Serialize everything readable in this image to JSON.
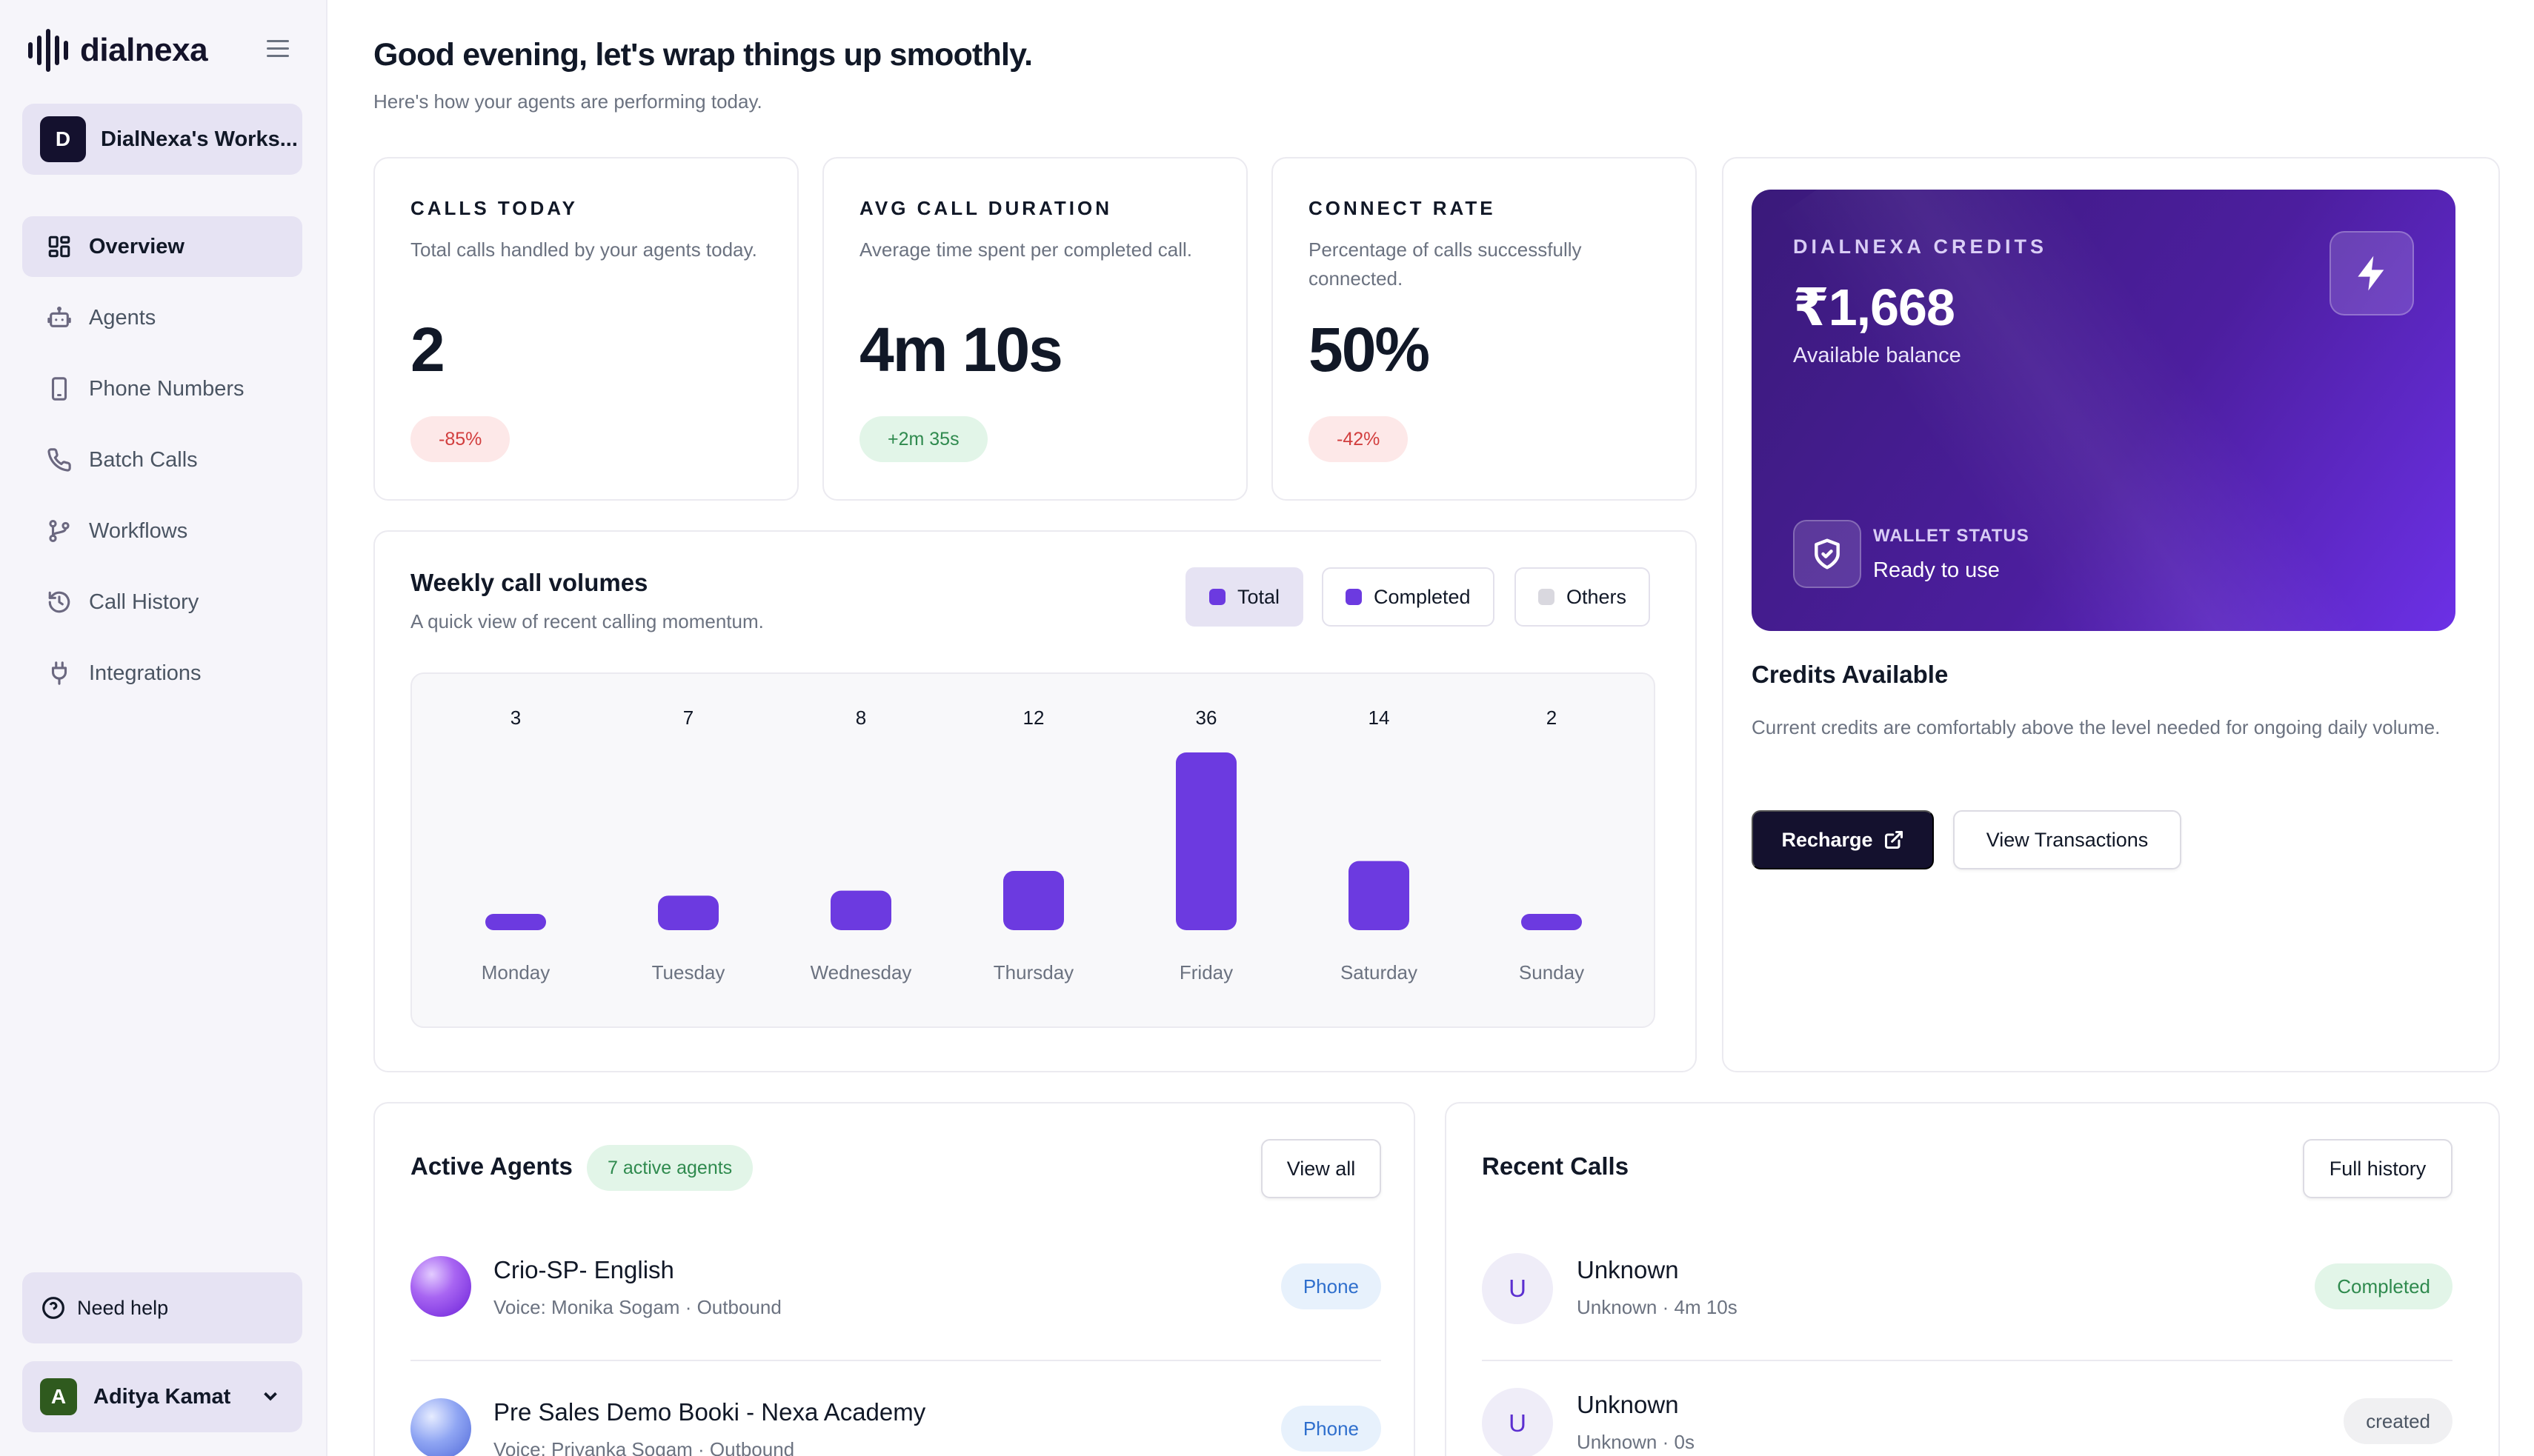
{
  "brand": {
    "name": "dialnexa"
  },
  "workspace": {
    "initial": "D",
    "name": "DialNexa's Works..."
  },
  "nav": {
    "items": [
      {
        "label": "Overview",
        "icon": "grid-icon",
        "active": true
      },
      {
        "label": "Agents",
        "icon": "robot-icon",
        "active": false
      },
      {
        "label": "Phone Numbers",
        "icon": "phone-device-icon",
        "active": false
      },
      {
        "label": "Batch Calls",
        "icon": "phone-icon",
        "active": false
      },
      {
        "label": "Workflows",
        "icon": "workflow-icon",
        "active": false
      },
      {
        "label": "Call History",
        "icon": "history-icon",
        "active": false
      },
      {
        "label": "Integrations",
        "icon": "plug-icon",
        "active": false
      }
    ]
  },
  "help": {
    "label": "Need help"
  },
  "user": {
    "initial": "A",
    "name": "Aditya Kamat"
  },
  "header": {
    "greeting": "Good evening, let's wrap things up smoothly.",
    "subtitle": "Here's how your agents are performing today."
  },
  "stats": [
    {
      "label": "CALLS TODAY",
      "desc": "Total calls handled by your agents today.",
      "value": "2",
      "delta": "-85%",
      "trend": "neg"
    },
    {
      "label": "AVG CALL DURATION",
      "desc": "Average time spent per completed call.",
      "value": "4m 10s",
      "delta": "+2m 35s",
      "trend": "pos"
    },
    {
      "label": "CONNECT RATE",
      "desc": "Percentage of calls successfully connected.",
      "value": "50%",
      "delta": "-42%",
      "trend": "neg"
    }
  ],
  "credits": {
    "label": "DIALNEXA CREDITS",
    "amount": "₹1,668",
    "sub": "Available balance",
    "wallet_label": "WALLET STATUS",
    "wallet_status": "Ready to use",
    "title": "Credits Available",
    "desc": "Current credits are comfortably above the level needed for ongoing daily volume.",
    "recharge_label": "Recharge",
    "transactions_label": "View Transactions"
  },
  "weekly": {
    "title": "Weekly call volumes",
    "desc": "A quick view of recent calling momentum.",
    "legend": [
      {
        "label": "Total",
        "color": "#6c3ae0",
        "active": true
      },
      {
        "label": "Completed",
        "color": "#6c3ae0",
        "active": false
      },
      {
        "label": "Others",
        "color": "#d9d8df",
        "active": false
      }
    ]
  },
  "chart_data": {
    "type": "bar",
    "categories": [
      "Monday",
      "Tuesday",
      "Wednesday",
      "Thursday",
      "Friday",
      "Saturday",
      "Sunday"
    ],
    "values": [
      3,
      7,
      8,
      12,
      36,
      14,
      2
    ],
    "color": "#6c3ae0"
  },
  "agents": {
    "title": "Active Agents",
    "count_label": "7 active agents",
    "view_all": "View all",
    "items": [
      {
        "name": "Crio-SP- English",
        "meta": "Voice: Monika Sogam · Outbound",
        "tag": "Phone",
        "orb": "purple"
      },
      {
        "name": "Pre Sales Demo Booki - Nexa Academy",
        "meta": "Voice: Priyanka Sogam · Outbound",
        "tag": "Phone",
        "orb": "blue"
      }
    ]
  },
  "calls": {
    "title": "Recent Calls",
    "full_history": "Full history",
    "items": [
      {
        "initial": "U",
        "name": "Unknown",
        "meta": "Unknown · 4m 10s",
        "status": "Completed",
        "kind": "completed"
      },
      {
        "initial": "U",
        "name": "Unknown",
        "meta": "Unknown · 0s",
        "status": "created",
        "kind": "created"
      }
    ]
  }
}
